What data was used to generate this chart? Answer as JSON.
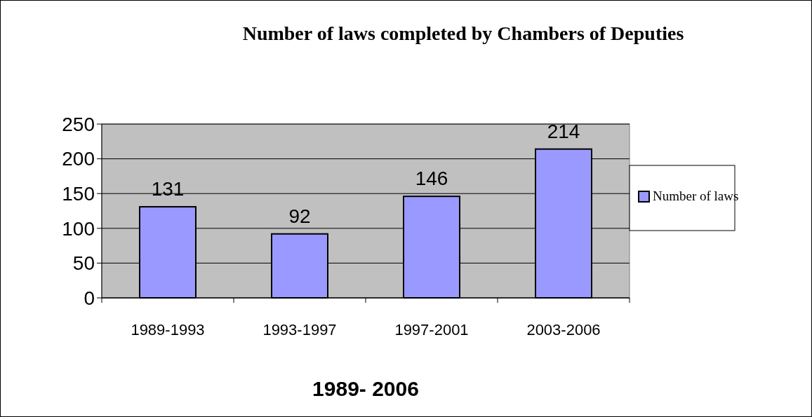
{
  "chart_data": {
    "type": "bar",
    "title": "Number of laws completed by Chambers of Deputies",
    "xlabel": "1989- 2006",
    "categories": [
      "1989-1993",
      "1993-1997",
      "1997-2001",
      "2003-2006"
    ],
    "series": [
      {
        "name": "Number of laws",
        "color": "#9999ff",
        "values": [
          131,
          92,
          146,
          214
        ]
      }
    ],
    "ylim": [
      0,
      250
    ],
    "yticks": [
      0,
      50,
      100,
      150,
      200,
      250
    ],
    "grid": "y",
    "legend": "right",
    "data_labels": true
  }
}
